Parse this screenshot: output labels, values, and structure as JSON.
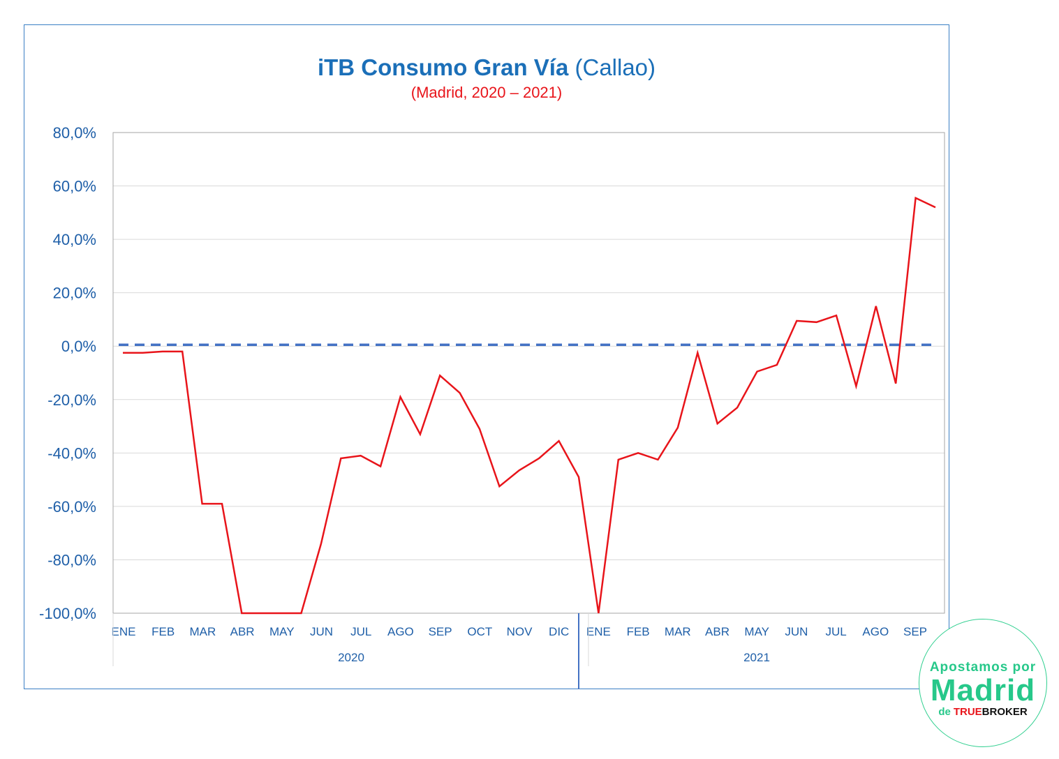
{
  "chart_data": {
    "type": "line",
    "title_bold": "iTB Consumo Gran Vía",
    "title_rest": " (Callao)",
    "subtitle": "(Madrid, 2020 – 2021)",
    "ylim": [
      -100,
      80
    ],
    "yticks": [
      "80,0%",
      "60,0%",
      "40,0%",
      "20,0%",
      "0,0%",
      "-20,0%",
      "-40,0%",
      "-60,0%",
      "-80,0%",
      "-100,0%"
    ],
    "months": [
      "ENE",
      "FEB",
      "MAR",
      "ABR",
      "MAY",
      "JUN",
      "JUL",
      "AGO",
      "SEP",
      "OCT",
      "NOV",
      "DIC",
      "ENE",
      "FEB",
      "MAR",
      "ABR",
      "MAY",
      "JUN",
      "JUL",
      "AGO",
      "SEP"
    ],
    "years": [
      "2020",
      "2021"
    ],
    "grid": true,
    "line_color": "#e8141a",
    "baseline_color": "#4472c4",
    "baseline_value": 0.5,
    "series": [
      {
        "values": [
          -2.5,
          -2.5,
          -2,
          -2,
          -59,
          -59,
          -100,
          -100,
          -100,
          -100,
          -74,
          -42,
          -41,
          -45,
          -19,
          -33,
          -11,
          -17.5,
          -31,
          -52.5,
          -46.5,
          -42,
          -35.5,
          -49,
          -100,
          -42.5,
          -40,
          -42.5,
          -30.5,
          -2.5,
          -29,
          -23,
          -9.5,
          -7,
          9.5,
          9,
          11.5,
          -15,
          15,
          -14,
          55.5,
          52
        ]
      }
    ]
  },
  "logo": {
    "line1": "Apostamos por",
    "line2": "Madrid",
    "de": "de",
    "true": "TRUE",
    "broker": "BROKER"
  }
}
